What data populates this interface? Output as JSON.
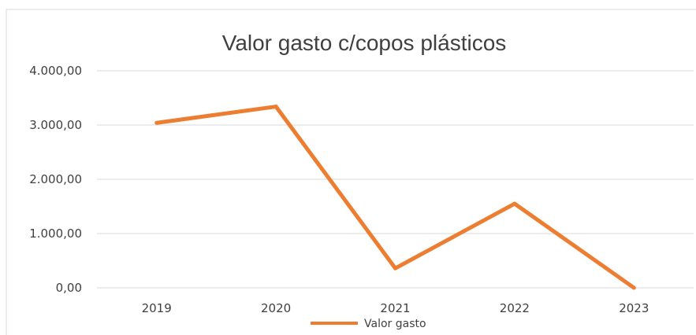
{
  "chart_data": {
    "type": "line",
    "title": "Valor gasto c/copos plásticos",
    "xlabel": "",
    "ylabel": "",
    "categories": [
      "2019",
      "2020",
      "2021",
      "2022",
      "2023"
    ],
    "series": [
      {
        "name": "Valor gasto",
        "values": [
          3040,
          3340,
          360,
          1550,
          0
        ],
        "color": "#ed7d31"
      }
    ],
    "ylim": [
      0,
      4000
    ],
    "yticks": [
      {
        "value": 0,
        "label": "0,00"
      },
      {
        "value": 1000,
        "label": "1.000,00"
      },
      {
        "value": 2000,
        "label": "2.000,00"
      },
      {
        "value": 3000,
        "label": "3.000,00"
      },
      {
        "value": 4000,
        "label": "4.000,00"
      }
    ],
    "grid": true,
    "legend": "bottom"
  }
}
